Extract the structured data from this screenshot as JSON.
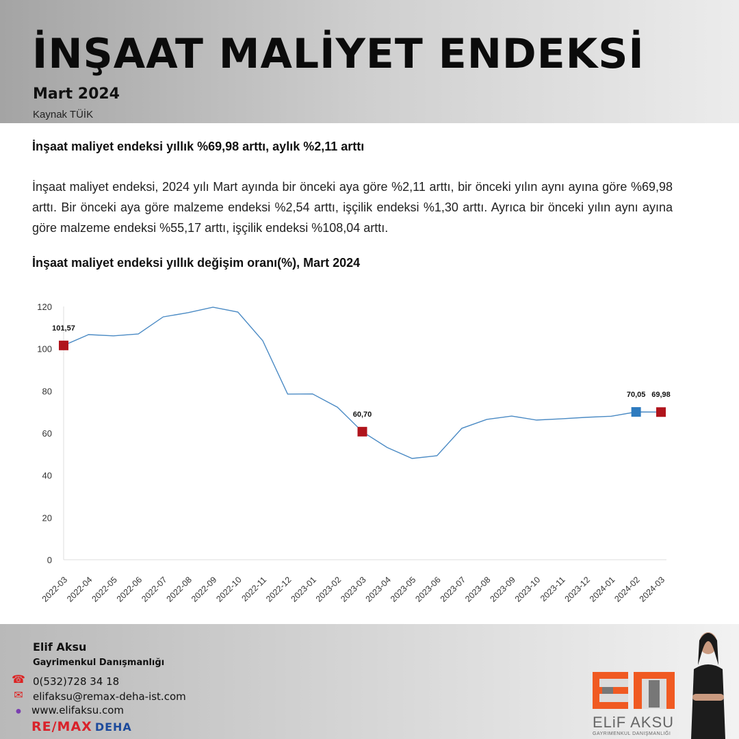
{
  "header": {
    "title": "İNŞAAT MALİYET ENDEKSİ",
    "subtitle": "Mart 2024",
    "source": "Kaynak TÜİK"
  },
  "main": {
    "headline": "İnşaat maliyet endeksi yıllık %69,98 arttı, aylık %2,11 arttı",
    "paragraph": "İnşaat maliyet endeksi, 2024 yılı Mart ayında bir önceki aya göre %2,11 arttı, bir önceki yılın aynı ayına göre %69,98 arttı. Bir önceki aya göre malzeme endeksi %2,54 arttı, işçilik endeksi %1,30 arttı. Ayrıca bir önceki yılın aynı ayına göre malzeme endeksi %55,17 arttı, işçilik endeksi %108,04 arttı."
  },
  "chart_data": {
    "type": "line",
    "title": "İnşaat maliyet endeksi yıllık değişim oranı(%), Mart 2024",
    "xlabel": "",
    "ylabel": "",
    "ylim": [
      0,
      120
    ],
    "yticks": [
      0,
      20,
      40,
      60,
      80,
      100,
      120
    ],
    "grid": false,
    "categories": [
      "2022-03",
      "2022-04",
      "2022-05",
      "2022-06",
      "2022-07",
      "2022-08",
      "2022-09",
      "2022-10",
      "2022-11",
      "2022-12",
      "2023-01",
      "2023-02",
      "2023-03",
      "2023-04",
      "2023-05",
      "2023-06",
      "2023-07",
      "2023-08",
      "2023-09",
      "2023-10",
      "2023-11",
      "2023-12",
      "2024-01",
      "2024-02",
      "2024-03"
    ],
    "series": [
      {
        "name": "Yıllık değişim",
        "color": "#4a8ac4",
        "values": [
          101.57,
          106.7,
          106.1,
          107.0,
          115.1,
          117.1,
          119.7,
          117.4,
          103.8,
          78.5,
          78.6,
          72.3,
          60.7,
          53.2,
          48.0,
          49.3,
          62.3,
          66.5,
          68.1,
          66.2,
          66.8,
          67.5,
          68.0,
          70.05,
          69.98
        ]
      }
    ],
    "highlights": [
      {
        "index": 0,
        "label": "101,57",
        "color": "#b0141c"
      },
      {
        "index": 12,
        "label": "60,70",
        "color": "#b0141c"
      },
      {
        "index": 23,
        "label": "70,05",
        "color": "#2e7bbf"
      },
      {
        "index": 24,
        "label": "69,98",
        "color": "#b0141c"
      }
    ]
  },
  "footer": {
    "name": "Elif Aksu",
    "role": "Gayrimenkul Danışmanlığı",
    "phone": "0(532)728 34 18",
    "email": "elifaksu@remax-deha-ist.com",
    "website": "www.elifaksu.com",
    "remax": "RE/MAX",
    "remax_office": "DEHA",
    "logo_name": "ELiF AKSU",
    "logo_sub": "GAYRIMENKUL DANIŞMANLIĞI",
    "accent": "#f05a22"
  }
}
